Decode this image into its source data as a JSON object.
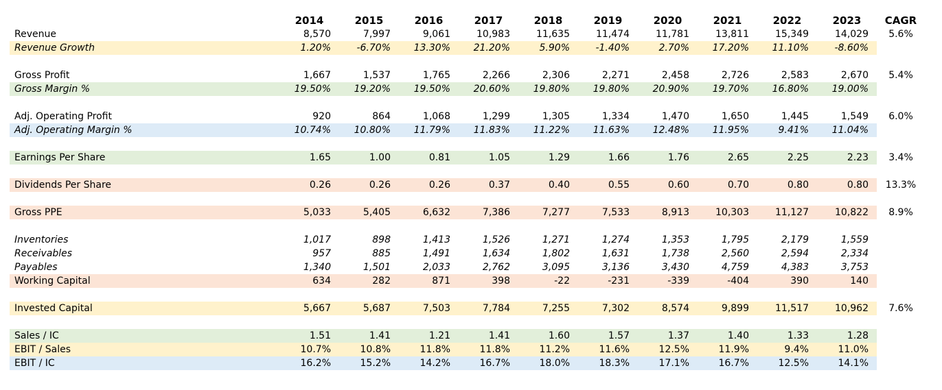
{
  "colors": {
    "yellow": "#FFF2CC",
    "green": "#E2EFDA",
    "blue": "#DDEBF7",
    "peach": "#FCE4D6"
  },
  "table": {
    "corner_label": "",
    "years": [
      "2014",
      "2015",
      "2016",
      "2017",
      "2018",
      "2019",
      "2020",
      "2021",
      "2022",
      "2023"
    ],
    "cagr_header": "CAGR",
    "rows": [
      {
        "label": "Revenue",
        "highlight": "none",
        "italic": false,
        "values": [
          "8,570",
          "7,997",
          "9,061",
          "10,983",
          "11,635",
          "11,474",
          "11,781",
          "13,811",
          "15,349",
          "14,029"
        ],
        "cagr": "5.6%"
      },
      {
        "label": "Revenue Growth",
        "highlight": "yellow",
        "italic": true,
        "values": [
          "1.20%",
          "-6.70%",
          "13.30%",
          "21.20%",
          "5.90%",
          "-1.40%",
          "2.70%",
          "17.20%",
          "11.10%",
          "-8.60%"
        ],
        "cagr": ""
      },
      {
        "type": "blank"
      },
      {
        "label": "Gross Profit",
        "highlight": "none",
        "italic": false,
        "values": [
          "1,667",
          "1,537",
          "1,765",
          "2,266",
          "2,306",
          "2,271",
          "2,458",
          "2,726",
          "2,583",
          "2,670"
        ],
        "cagr": "5.4%"
      },
      {
        "label": "Gross Margin %",
        "highlight": "green",
        "italic": true,
        "values": [
          "19.50%",
          "19.20%",
          "19.50%",
          "20.60%",
          "19.80%",
          "19.80%",
          "20.90%",
          "19.70%",
          "16.80%",
          "19.00%"
        ],
        "cagr": ""
      },
      {
        "type": "blank"
      },
      {
        "label": "Adj. Operating Profit",
        "highlight": "none",
        "italic": false,
        "values": [
          "920",
          "864",
          "1,068",
          "1,299",
          "1,305",
          "1,334",
          "1,470",
          "1,650",
          "1,445",
          "1,549"
        ],
        "cagr": "6.0%"
      },
      {
        "label": "Adj. Operating Margin %",
        "highlight": "blue",
        "italic": true,
        "values": [
          "10.74%",
          "10.80%",
          "11.79%",
          "11.83%",
          "11.22%",
          "11.63%",
          "12.48%",
          "11.95%",
          "9.41%",
          "11.04%"
        ],
        "cagr": ""
      },
      {
        "type": "blank"
      },
      {
        "label": "Earnings Per Share",
        "highlight": "green",
        "italic": false,
        "values": [
          "1.65",
          "1.00",
          "0.81",
          "1.05",
          "1.29",
          "1.66",
          "1.76",
          "2.65",
          "2.25",
          "2.23"
        ],
        "cagr": "3.4%"
      },
      {
        "type": "blank"
      },
      {
        "label": "Dividends Per Share",
        "highlight": "peach",
        "italic": false,
        "values": [
          "0.26",
          "0.26",
          "0.26",
          "0.37",
          "0.40",
          "0.55",
          "0.60",
          "0.70",
          "0.80",
          "0.80"
        ],
        "cagr": "13.3%"
      },
      {
        "type": "blank"
      },
      {
        "label": "Gross PPE",
        "highlight": "peach",
        "italic": false,
        "values": [
          "5,033",
          "5,405",
          "6,632",
          "7,386",
          "7,277",
          "7,533",
          "8,913",
          "10,303",
          "11,127",
          "10,822"
        ],
        "cagr": "8.9%"
      },
      {
        "type": "blank"
      },
      {
        "label": "Inventories",
        "highlight": "none",
        "italic": true,
        "values": [
          "1,017",
          "898",
          "1,413",
          "1,526",
          "1,271",
          "1,274",
          "1,353",
          "1,795",
          "2,179",
          "1,559"
        ],
        "cagr": ""
      },
      {
        "label": "Receivables",
        "highlight": "none",
        "italic": true,
        "values": [
          "957",
          "885",
          "1,491",
          "1,634",
          "1,802",
          "1,631",
          "1,738",
          "2,560",
          "2,594",
          "2,334"
        ],
        "cagr": ""
      },
      {
        "label": "Payables",
        "highlight": "none",
        "italic": true,
        "values": [
          "1,340",
          "1,501",
          "2,033",
          "2,762",
          "3,095",
          "3,136",
          "3,430",
          "4,759",
          "4,383",
          "3,753"
        ],
        "cagr": ""
      },
      {
        "label": "Working Capital",
        "highlight": "peach",
        "italic": false,
        "values": [
          "634",
          "282",
          "871",
          "398",
          "-22",
          "-231",
          "-339",
          "-404",
          "390",
          "140"
        ],
        "cagr": ""
      },
      {
        "type": "blank"
      },
      {
        "label": "Invested Capital",
        "highlight": "yellow",
        "italic": false,
        "values": [
          "5,667",
          "5,687",
          "7,503",
          "7,784",
          "7,255",
          "7,302",
          "8,574",
          "9,899",
          "11,517",
          "10,962"
        ],
        "cagr": "7.6%"
      },
      {
        "type": "blank"
      },
      {
        "label": "Sales / IC",
        "highlight": "green",
        "italic": false,
        "values": [
          "1.51",
          "1.41",
          "1.21",
          "1.41",
          "1.60",
          "1.57",
          "1.37",
          "1.40",
          "1.33",
          "1.28"
        ],
        "cagr": ""
      },
      {
        "label": "EBIT / Sales",
        "highlight": "yellow",
        "italic": false,
        "values": [
          "10.7%",
          "10.8%",
          "11.8%",
          "11.8%",
          "11.2%",
          "11.6%",
          "12.5%",
          "11.9%",
          "9.4%",
          "11.0%"
        ],
        "cagr": ""
      },
      {
        "label": "EBIT / IC",
        "highlight": "blue",
        "italic": false,
        "values": [
          "16.2%",
          "15.2%",
          "14.2%",
          "16.7%",
          "18.0%",
          "18.3%",
          "17.1%",
          "16.7%",
          "12.5%",
          "14.1%"
        ],
        "cagr": ""
      }
    ]
  }
}
